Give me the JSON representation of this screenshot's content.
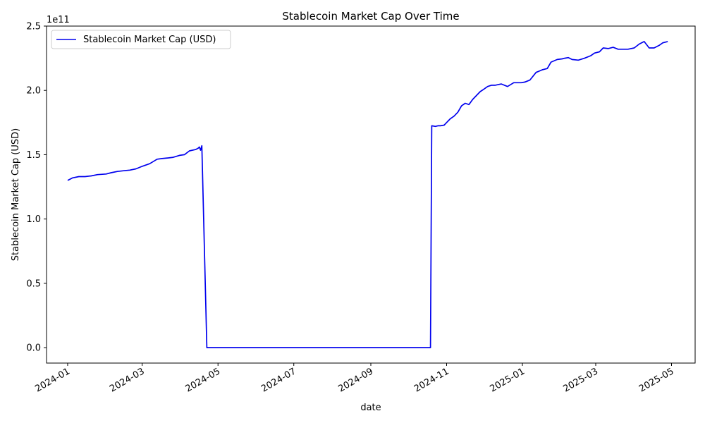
{
  "chart_data": {
    "type": "line",
    "title": "Stablecoin Market Cap Over Time",
    "xlabel": "date",
    "ylabel": "Stablecoin Market Cap (USD)",
    "y_offset_label": "1e11",
    "legend_position": "top-left",
    "grid": false,
    "line_color": "#0000ee",
    "xlim": [
      "2023-12-15",
      "2025-05-20"
    ],
    "ylim": [
      -0.12,
      2.5
    ],
    "y_ticks": [
      0.0,
      0.5,
      1.0,
      1.5,
      2.0,
      2.5
    ],
    "y_tick_labels": [
      "0.0",
      "0.5",
      "1.0",
      "1.5",
      "2.0",
      "2.5"
    ],
    "x_ticks": [
      "2024-01-01",
      "2024-03-01",
      "2024-05-01",
      "2024-07-01",
      "2024-09-01",
      "2024-11-01",
      "2025-01-01",
      "2025-03-01",
      "2025-05-01"
    ],
    "x_tick_labels": [
      "2024-01",
      "2024-03",
      "2024-05",
      "2024-07",
      "2024-09",
      "2024-11",
      "2025-01",
      "2025-03",
      "2025-05"
    ],
    "series": [
      {
        "name": "Stablecoin Market Cap (USD)",
        "x": [
          "2024-01-01",
          "2024-01-05",
          "2024-01-10",
          "2024-01-15",
          "2024-01-20",
          "2024-01-25",
          "2024-02-01",
          "2024-02-05",
          "2024-02-10",
          "2024-02-15",
          "2024-02-20",
          "2024-02-25",
          "2024-03-01",
          "2024-03-07",
          "2024-03-13",
          "2024-03-17",
          "2024-03-22",
          "2024-03-26",
          "2024-03-31",
          "2024-04-04",
          "2024-04-08",
          "2024-04-13",
          "2024-04-15",
          "2024-04-16",
          "2024-04-17",
          "2024-04-18",
          "2024-04-22",
          "2024-10-19",
          "2024-10-20",
          "2024-10-23",
          "2024-10-25",
          "2024-10-27",
          "2024-10-30",
          "2024-11-01",
          "2024-11-04",
          "2024-11-07",
          "2024-11-10",
          "2024-11-13",
          "2024-11-16",
          "2024-11-19",
          "2024-11-22",
          "2024-11-25",
          "2024-11-28",
          "2024-12-01",
          "2024-12-04",
          "2024-12-07",
          "2024-12-10",
          "2024-12-15",
          "2024-12-20",
          "2024-12-25",
          "2024-12-31",
          "2025-01-03",
          "2025-01-07",
          "2025-01-12",
          "2025-01-17",
          "2025-01-21",
          "2025-01-24",
          "2025-01-29",
          "2025-02-02",
          "2025-02-04",
          "2025-02-07",
          "2025-02-10",
          "2025-02-15",
          "2025-02-20",
          "2025-02-25",
          "2025-02-28",
          "2025-03-04",
          "2025-03-07",
          "2025-03-11",
          "2025-03-15",
          "2025-03-19",
          "2025-03-24",
          "2025-03-27",
          "2025-04-01",
          "2025-04-05",
          "2025-04-09",
          "2025-04-13",
          "2025-04-17",
          "2025-04-21",
          "2025-04-24",
          "2025-04-28"
        ],
        "values": [
          1.3,
          1.32,
          1.33,
          1.33,
          1.335,
          1.345,
          1.35,
          1.36,
          1.37,
          1.375,
          1.38,
          1.39,
          1.41,
          1.43,
          1.465,
          1.47,
          1.475,
          1.48,
          1.495,
          1.5,
          1.53,
          1.54,
          1.55,
          1.56,
          1.535,
          1.57,
          0.0,
          0.0,
          1.725,
          1.72,
          1.725,
          1.725,
          1.73,
          1.75,
          1.78,
          1.8,
          1.83,
          1.88,
          1.9,
          1.89,
          1.93,
          1.96,
          1.99,
          2.01,
          2.03,
          2.04,
          2.04,
          2.05,
          2.03,
          2.06,
          2.06,
          2.065,
          2.08,
          2.14,
          2.16,
          2.17,
          2.22,
          2.24,
          2.245,
          2.25,
          2.255,
          2.24,
          2.235,
          2.25,
          2.27,
          2.29,
          2.3,
          2.33,
          2.325,
          2.335,
          2.32,
          2.32,
          2.32,
          2.33,
          2.36,
          2.38,
          2.33,
          2.33,
          2.35,
          2.37,
          2.38
        ]
      }
    ]
  }
}
